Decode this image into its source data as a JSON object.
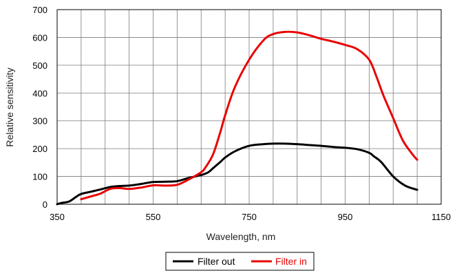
{
  "chart_data": {
    "type": "line",
    "title": "",
    "xlabel": "Wavelength, nm",
    "ylabel": "Relative sensitivity",
    "xlim": [
      350,
      1150
    ],
    "ylim": [
      0,
      700
    ],
    "x_ticks": [
      350,
      550,
      750,
      950,
      1150
    ],
    "x_tick_labels": [
      "350",
      "550",
      "750",
      "950",
      "1150"
    ],
    "x_grid_step": 50,
    "y_ticks": [
      0,
      100,
      200,
      300,
      400,
      500,
      600,
      700
    ],
    "y_tick_labels": [
      "0",
      "100",
      "200",
      "300",
      "400",
      "500",
      "600",
      "700"
    ],
    "grid": true,
    "legend_position": "bottom-center",
    "series": [
      {
        "name": "Filter out",
        "color": "#000000",
        "x": [
          350,
          360,
          375,
          390,
          400,
          420,
          440,
          460,
          475,
          500,
          525,
          550,
          575,
          600,
          625,
          650,
          665,
          675,
          690,
          700,
          720,
          750,
          780,
          800,
          825,
          850,
          875,
          900,
          925,
          950,
          975,
          1000,
          1010,
          1025,
          1050,
          1075,
          1100
        ],
        "y": [
          0,
          5,
          10,
          27,
          37,
          45,
          53,
          62,
          65,
          67,
          73,
          80,
          81,
          83,
          95,
          105,
          115,
          130,
          152,
          168,
          190,
          210,
          216,
          218,
          218,
          216,
          213,
          210,
          206,
          203,
          198,
          185,
          172,
          152,
          100,
          67,
          52
        ]
      },
      {
        "name": "Filter in",
        "color": "#e80000",
        "x": [
          400,
          420,
          440,
          460,
          480,
          500,
          525,
          550,
          575,
          600,
          625,
          650,
          660,
          675,
          690,
          700,
          720,
          750,
          780,
          800,
          825,
          850,
          875,
          900,
          925,
          950,
          975,
          1000,
          1015,
          1030,
          1050,
          1070,
          1090,
          1100
        ],
        "y": [
          18,
          28,
          38,
          55,
          58,
          55,
          60,
          68,
          67,
          70,
          90,
          115,
          135,
          180,
          260,
          320,
          420,
          520,
          590,
          612,
          620,
          618,
          608,
          595,
          585,
          573,
          558,
          520,
          460,
          390,
          310,
          230,
          180,
          160
        ]
      }
    ]
  }
}
